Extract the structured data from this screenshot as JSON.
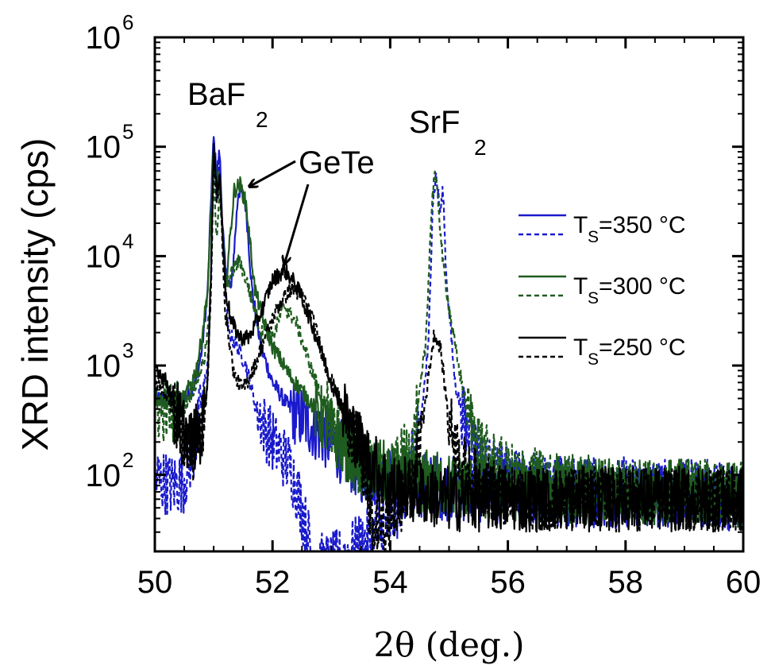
{
  "chart_data": {
    "type": "line",
    "xlabel": "2θ (deg.)",
    "ylabel": "XRD intensity (cps)",
    "xlim": [
      50,
      60
    ],
    "ylim": [
      20,
      1000000
    ],
    "y_scale": "log",
    "x_ticks": [
      "50",
      "52",
      "54",
      "56",
      "58",
      "60"
    ],
    "y_ticks": [
      {
        "base": "10",
        "exp": "2",
        "value": 100
      },
      {
        "base": "10",
        "exp": "3",
        "value": 1000
      },
      {
        "base": "10",
        "exp": "4",
        "value": 10000
      },
      {
        "base": "10",
        "exp": "5",
        "value": 100000
      },
      {
        "base": "10",
        "exp": "6",
        "value": 1000000
      }
    ],
    "grid": false,
    "legend_position": "right",
    "legend": [
      {
        "prefix": "T",
        "sub": "S",
        "suffix": "=350 °C",
        "color": "#1a1acc"
      },
      {
        "prefix": "T",
        "sub": "S",
        "suffix": "=300 °C",
        "color": "#1f5c1f"
      },
      {
        "prefix": "T",
        "sub": "S",
        "suffix": "=250 °C",
        "color": "#000000"
      }
    ],
    "annotations": [
      {
        "text": "BaF",
        "sub": "2",
        "x": 51.0
      },
      {
        "text": "SrF",
        "sub": "2",
        "x": 54.8
      },
      {
        "text": "GeTe",
        "arrow_targets": [
          [
            51.45,
            42000
          ],
          [
            52.15,
            8000
          ]
        ]
      }
    ],
    "series": [
      {
        "temperature": "350",
        "style": "solid",
        "color": "#1a1acc",
        "points": [
          [
            50.0,
            500
          ],
          [
            50.3,
            480
          ],
          [
            50.5,
            500
          ],
          [
            50.7,
            700
          ],
          [
            50.8,
            1400
          ],
          [
            50.9,
            5000
          ],
          [
            50.96,
            40000
          ],
          [
            51.0,
            120000
          ],
          [
            51.05,
            55000
          ],
          [
            51.1,
            90000
          ],
          [
            51.15,
            20000
          ],
          [
            51.2,
            7000
          ],
          [
            51.3,
            5000
          ],
          [
            51.42,
            40000
          ],
          [
            51.48,
            38000
          ],
          [
            51.55,
            28000
          ],
          [
            51.65,
            5000
          ],
          [
            51.8,
            1500
          ],
          [
            52.0,
            700
          ],
          [
            52.3,
            400
          ],
          [
            52.6,
            300
          ],
          [
            53.0,
            200
          ],
          [
            53.5,
            110
          ],
          [
            54.0,
            90
          ],
          [
            55.0,
            75
          ],
          [
            56.0,
            70
          ],
          [
            57.0,
            65
          ],
          [
            58.0,
            65
          ],
          [
            59.0,
            65
          ],
          [
            60.0,
            60
          ]
        ]
      },
      {
        "temperature": "350",
        "style": "dashed",
        "color": "#1a1acc",
        "points": [
          [
            50.0,
            95
          ],
          [
            50.3,
            80
          ],
          [
            50.5,
            90
          ],
          [
            50.7,
            200
          ],
          [
            50.8,
            500
          ],
          [
            50.9,
            1100
          ],
          [
            50.96,
            6000
          ],
          [
            51.0,
            90000
          ],
          [
            51.05,
            28000
          ],
          [
            51.1,
            85000
          ],
          [
            51.15,
            12000
          ],
          [
            51.25,
            2000
          ],
          [
            51.4,
            1500
          ],
          [
            51.55,
            1000
          ],
          [
            51.7,
            450
          ],
          [
            51.9,
            250
          ],
          [
            52.1,
            170
          ],
          [
            52.3,
            120
          ],
          [
            52.5,
            50
          ],
          [
            52.7,
            15
          ],
          [
            53.0,
            15
          ],
          [
            54.0,
            35
          ],
          [
            54.3,
            90
          ],
          [
            54.5,
            250
          ],
          [
            54.65,
            1500
          ],
          [
            54.72,
            30000
          ],
          [
            54.78,
            55000
          ],
          [
            54.85,
            25000
          ],
          [
            54.9,
            40000
          ],
          [
            54.95,
            7000
          ],
          [
            55.1,
            700
          ],
          [
            55.3,
            250
          ],
          [
            55.6,
            120
          ],
          [
            56.0,
            90
          ],
          [
            57.0,
            75
          ],
          [
            58.0,
            75
          ],
          [
            59.0,
            70
          ],
          [
            60.0,
            70
          ]
        ]
      },
      {
        "temperature": "300",
        "style": "solid",
        "color": "#1f5c1f",
        "points": [
          [
            50.0,
            500
          ],
          [
            50.3,
            480
          ],
          [
            50.5,
            500
          ],
          [
            50.7,
            900
          ],
          [
            50.8,
            1800
          ],
          [
            50.9,
            5000
          ],
          [
            50.96,
            30000
          ],
          [
            51.0,
            100000
          ],
          [
            51.05,
            40000
          ],
          [
            51.1,
            60000
          ],
          [
            51.2,
            5000
          ],
          [
            51.35,
            40000
          ],
          [
            51.45,
            45000
          ],
          [
            51.55,
            30000
          ],
          [
            51.7,
            5000
          ],
          [
            51.85,
            2500
          ],
          [
            52.0,
            1500
          ],
          [
            52.3,
            800
          ],
          [
            52.6,
            500
          ],
          [
            53.0,
            250
          ],
          [
            53.5,
            120
          ],
          [
            54.0,
            100
          ],
          [
            55.0,
            80
          ],
          [
            56.0,
            75
          ],
          [
            57.0,
            70
          ],
          [
            58.0,
            70
          ],
          [
            59.0,
            70
          ],
          [
            60.0,
            65
          ]
        ]
      },
      {
        "temperature": "300",
        "style": "dashed",
        "color": "#1f5c1f",
        "points": [
          [
            50.0,
            400
          ],
          [
            50.3,
            380
          ],
          [
            50.5,
            420
          ],
          [
            50.7,
            700
          ],
          [
            50.85,
            1200
          ],
          [
            50.95,
            4000
          ],
          [
            51.0,
            60000
          ],
          [
            51.05,
            15000
          ],
          [
            51.1,
            40000
          ],
          [
            51.2,
            5000
          ],
          [
            51.35,
            8000
          ],
          [
            51.45,
            9000
          ],
          [
            51.6,
            5000
          ],
          [
            51.8,
            2000
          ],
          [
            52.0,
            1800
          ],
          [
            52.2,
            3500
          ],
          [
            52.4,
            2500
          ],
          [
            52.7,
            800
          ],
          [
            53.0,
            300
          ],
          [
            53.5,
            120
          ],
          [
            54.0,
            90
          ],
          [
            54.4,
            200
          ],
          [
            54.6,
            1500
          ],
          [
            54.7,
            25000
          ],
          [
            54.75,
            60000
          ],
          [
            54.82,
            30000
          ],
          [
            54.9,
            8000
          ],
          [
            55.1,
            1500
          ],
          [
            55.3,
            400
          ],
          [
            55.6,
            150
          ],
          [
            56.0,
            100
          ],
          [
            57.0,
            80
          ],
          [
            58.0,
            75
          ],
          [
            59.0,
            70
          ],
          [
            60.0,
            70
          ]
        ]
      },
      {
        "temperature": "250",
        "style": "solid",
        "color": "#000000",
        "points": [
          [
            50.0,
            1000
          ],
          [
            50.2,
            700
          ],
          [
            50.4,
            350
          ],
          [
            50.6,
            200
          ],
          [
            50.8,
            250
          ],
          [
            50.9,
            800
          ],
          [
            50.96,
            10000
          ],
          [
            51.0,
            100000
          ],
          [
            51.05,
            40000
          ],
          [
            51.1,
            60000
          ],
          [
            51.2,
            5000
          ],
          [
            51.3,
            2500
          ],
          [
            51.45,
            1800
          ],
          [
            51.6,
            1800
          ],
          [
            51.8,
            3000
          ],
          [
            52.0,
            6000
          ],
          [
            52.2,
            7500
          ],
          [
            52.4,
            5500
          ],
          [
            52.6,
            3000
          ],
          [
            52.8,
            1500
          ],
          [
            53.0,
            700
          ],
          [
            53.3,
            300
          ],
          [
            53.6,
            150
          ],
          [
            54.0,
            80
          ],
          [
            55.0,
            60
          ],
          [
            56.0,
            60
          ],
          [
            57.0,
            60
          ],
          [
            58.0,
            60
          ],
          [
            59.0,
            60
          ],
          [
            60.0,
            60
          ]
        ]
      },
      {
        "temperature": "250",
        "style": "dashed",
        "color": "#000000",
        "points": [
          [
            50.0,
            700
          ],
          [
            50.2,
            550
          ],
          [
            50.4,
            300
          ],
          [
            50.6,
            150
          ],
          [
            50.8,
            250
          ],
          [
            50.9,
            700
          ],
          [
            50.96,
            8000
          ],
          [
            51.0,
            80000
          ],
          [
            51.05,
            30000
          ],
          [
            51.1,
            50000
          ],
          [
            51.2,
            3000
          ],
          [
            51.35,
            800
          ],
          [
            51.5,
            600
          ],
          [
            51.7,
            1000
          ],
          [
            51.9,
            2000
          ],
          [
            52.1,
            3500
          ],
          [
            52.3,
            5000
          ],
          [
            52.5,
            4500
          ],
          [
            52.7,
            2500
          ],
          [
            52.9,
            1000
          ],
          [
            53.2,
            400
          ],
          [
            53.5,
            150
          ],
          [
            53.7,
            30
          ],
          [
            54.0,
            40
          ],
          [
            54.4,
            80
          ],
          [
            54.6,
            500
          ],
          [
            54.75,
            2000
          ],
          [
            54.85,
            1500
          ],
          [
            55.0,
            300
          ],
          [
            55.3,
            100
          ],
          [
            56.0,
            60
          ],
          [
            57.0,
            60
          ],
          [
            58.0,
            60
          ],
          [
            59.0,
            60
          ],
          [
            60.0,
            60
          ]
        ]
      }
    ]
  }
}
